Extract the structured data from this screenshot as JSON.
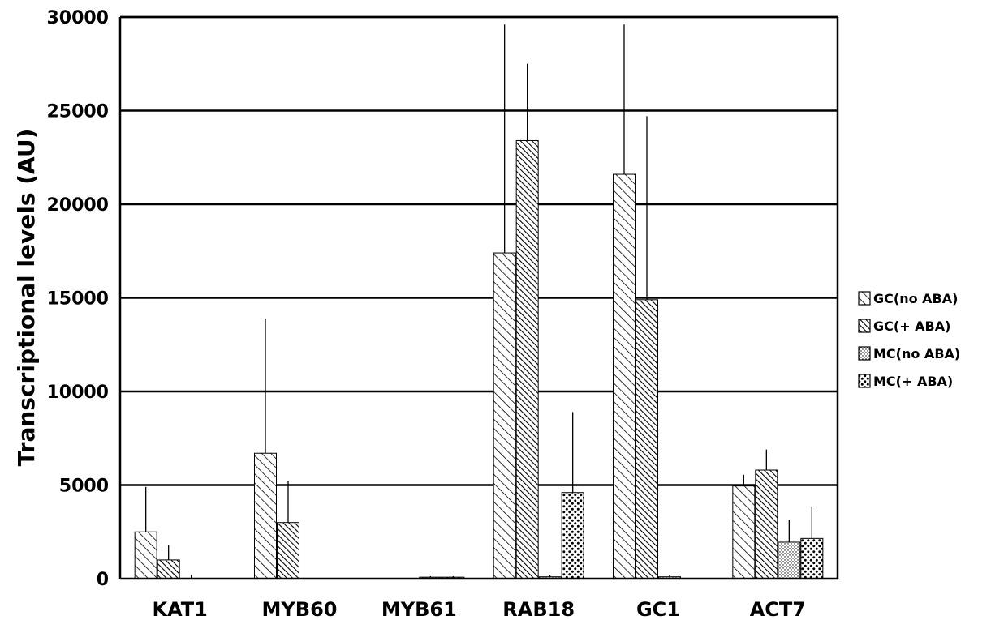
{
  "chart_data": {
    "type": "bar",
    "ylabel": "Transcriptional levels (AU)",
    "xlabel": "",
    "ylim": [
      0,
      30000
    ],
    "yticks": [
      0,
      5000,
      10000,
      15000,
      20000,
      25000,
      30000
    ],
    "grid": true,
    "legend_position": "right",
    "categories": [
      "KAT1",
      "MYB60",
      "MYB61",
      "RAB18",
      "GC1",
      "ACT7"
    ],
    "series": [
      {
        "name": "GC(no ABA)",
        "pattern": "sparse-diagonal-hatch",
        "values": [
          2500,
          6700,
          0,
          17400,
          21600,
          4950
        ],
        "errors": [
          2400,
          7200,
          0,
          12200,
          8000,
          600
        ]
      },
      {
        "name": "GC(+ ABA)",
        "pattern": "dense-diagonal-hatch",
        "values": [
          1000,
          3000,
          0,
          23400,
          14900,
          5800
        ],
        "errors": [
          800,
          2200,
          0,
          4100,
          9800,
          1100
        ]
      },
      {
        "name": "MC(no ABA)",
        "pattern": "fine-dots",
        "values": [
          0,
          0,
          80,
          100,
          100,
          1950
        ],
        "errors": [
          200,
          0,
          50,
          100,
          100,
          1200
        ]
      },
      {
        "name": "MC(+ ABA)",
        "pattern": "coarse-dots",
        "values": [
          0,
          0,
          80,
          4600,
          0,
          2150
        ],
        "errors": [
          0,
          0,
          50,
          4300,
          0,
          1700
        ]
      }
    ],
    "colors": {
      "bar_stroke": "#000000",
      "background": "#ffffff",
      "grid": "#000000"
    }
  }
}
